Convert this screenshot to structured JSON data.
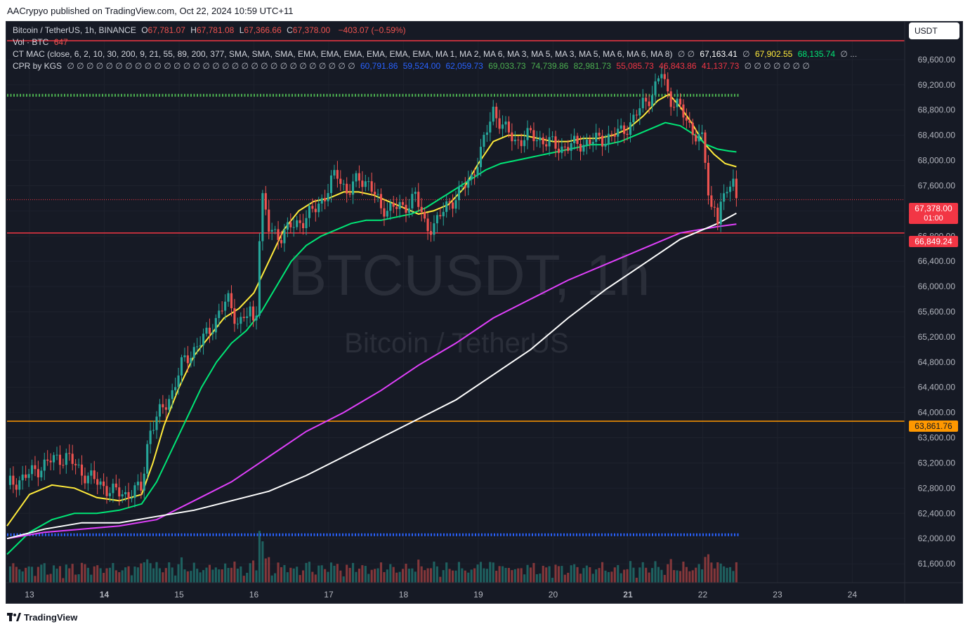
{
  "header": {
    "published": "AACrypyo published on TradingView.com, Oct 22, 2024 10:59 UTC+11"
  },
  "footer": {
    "brand": "TradingView"
  },
  "currency_button": "USDT",
  "legend": {
    "symbol": "Bitcoin / TetherUS, 1h, BINANCE",
    "o_label": "O",
    "o_value": "67,781.07",
    "h_label": "H",
    "h_value": "67,781.08",
    "l_label": "L",
    "l_value": "67,366.66",
    "c_label": "C",
    "c_value": "67,378.00",
    "change": "−403.07 (−0.59%)",
    "vol_label": "Vol · BTC",
    "vol_value": "647",
    "ctmac_label": "CT MAC (close, 6, 2, 10, 30, 200, 9, 21, 55, 89, 200, 377, SMA, SMA, SMA, EMA, EMA, EMA, EMA, EMA, EMA, MA 1, MA 2, MA 6, MA 3, MA 5, MA 3, MA 5, MA 6, MA 6, MA 8)",
    "ctmac_null": "∅ ∅",
    "ctmac_v1": "67,163.41",
    "ctmac_null2": "∅",
    "ctmac_v2": "67,902.55",
    "ctmac_v3": "68,135.74",
    "ctmac_tail": "∅ ...",
    "cpr_label": "CPR by KGS",
    "cpr_nulls": "∅ ∅ ∅ ∅ ∅ ∅ ∅ ∅ ∅ ∅ ∅ ∅ ∅ ∅ ∅ ∅ ∅ ∅ ∅ ∅ ∅ ∅ ∅ ∅ ∅ ∅ ∅ ∅ ∅ ∅",
    "cpr_v1": "60,791.86",
    "cpr_v2": "59,524.00",
    "cpr_v3": "62,059.73",
    "cpr_v4": "69,033.73",
    "cpr_v5": "74,739.86",
    "cpr_v6": "82,981.73",
    "cpr_v7": "55,085.73",
    "cpr_v8": "46,843.86",
    "cpr_v9": "41,137.73",
    "cpr_tail": "∅ ∅ ∅ ∅ ∅ ∅ ∅"
  },
  "watermark": {
    "symbol": "BTCUSDT, 1h",
    "name": "Bitcoin / TetherUS"
  },
  "colors": {
    "background": "#161a25",
    "up": "#26a69a",
    "down": "#ef5350",
    "ema_fast": "#ffeb3b",
    "ema_mid": "#00e676",
    "ma_200": "#ffffff",
    "ma_377": "#e040fb",
    "support_orange": "#ff9800",
    "resistance_red": "#f23645",
    "cpr_green": "#4caf50",
    "cpr_blue": "#2962ff"
  },
  "chart_data": {
    "type": "candlestick",
    "timeframe": "1h",
    "ylim": [
      61300,
      69900
    ],
    "y_ticks": [
      61600,
      62000,
      62400,
      62800,
      63200,
      63600,
      64000,
      64400,
      64800,
      65200,
      65600,
      66000,
      66400,
      66800,
      67200,
      67600,
      68000,
      68400,
      68800,
      69200,
      69600
    ],
    "y_tick_labels": [
      "61,600.00",
      "62,000.00",
      "62,400.00",
      "62,800.00",
      "63,200.00",
      "63,600.00",
      "64,000.00",
      "64,400.00",
      "64,800.00",
      "65,200.00",
      "65,600.00",
      "66,000.00",
      "66,400.00",
      "66,800.00",
      "67,200.00",
      "67,600.00",
      "68,000.00",
      "68,400.00",
      "68,800.00",
      "69,200.00",
      "69,600.00"
    ],
    "x_tick_labels": [
      "13",
      "14",
      "15",
      "16",
      "17",
      "18",
      "19",
      "20",
      "21",
      "22",
      "23",
      "24"
    ],
    "x_tick_bold": [
      "14",
      "21"
    ],
    "xlim_days": [
      12.7,
      24.7
    ],
    "horizontal_lines": [
      {
        "value": 66849.24,
        "label": "66,849.24",
        "color": "#f23645",
        "style": "solid"
      },
      {
        "value": 63861.76,
        "label": "63,861.76",
        "color": "#ff9800",
        "style": "solid"
      },
      {
        "value": 69900,
        "label": "",
        "color": "#f23645",
        "style": "solid"
      },
      {
        "value": 69033.73,
        "label": "",
        "color": "#4caf50",
        "style": "dotted",
        "x_end_day": 22.5
      },
      {
        "value": 62059.73,
        "label": "",
        "color": "#2962ff",
        "style": "dotted",
        "x_end_day": 22.5
      }
    ],
    "last_price": {
      "value": 67378.0,
      "label": "67,378.00",
      "countdown": "01:00",
      "color": "#f23645"
    },
    "closes": {
      "day": [
        12.7,
        12.9,
        13.1,
        13.3,
        13.5,
        13.7,
        13.9,
        14.1,
        14.3,
        14.5,
        14.6,
        14.75,
        14.9,
        15.05,
        15.2,
        15.35,
        15.5,
        15.65,
        15.8,
        15.95,
        16.02,
        16.1,
        16.2,
        16.35,
        16.5,
        16.65,
        16.8,
        16.95,
        17.1,
        17.25,
        17.4,
        17.55,
        17.7,
        17.85,
        18.0,
        18.15,
        18.3,
        18.45,
        18.6,
        18.75,
        18.9,
        19.05,
        19.2,
        19.35,
        19.5,
        19.7,
        19.9,
        20.1,
        20.3,
        20.5,
        20.7,
        20.9,
        21.05,
        21.2,
        21.35,
        21.45,
        21.55,
        21.65,
        21.75,
        21.85,
        22.0,
        22.05,
        22.1,
        22.15,
        22.2,
        22.25,
        22.3,
        22.35,
        22.4,
        22.45
      ],
      "price": [
        62850,
        62950,
        63100,
        63250,
        63300,
        63050,
        62900,
        62750,
        62700,
        62800,
        63700,
        64000,
        64300,
        64800,
        65000,
        65200,
        65500,
        65800,
        65400,
        65600,
        65300,
        67500,
        66900,
        66800,
        66950,
        67050,
        67200,
        67450,
        67800,
        67500,
        67700,
        67650,
        67200,
        67300,
        67200,
        67500,
        66900,
        67050,
        67300,
        67500,
        67700,
        68200,
        68800,
        68500,
        68300,
        68400,
        68300,
        68200,
        68250,
        68300,
        68350,
        68450,
        68600,
        68900,
        69100,
        69400,
        69000,
        68900,
        68700,
        68500,
        68300,
        67800,
        67200,
        67300,
        67100,
        67400,
        67300,
        67600,
        67800,
        67378
      ]
    },
    "series": [
      {
        "name": "",
        "color": "#ffeb3b",
        "day": [
          12.7,
          13.0,
          13.3,
          13.6,
          13.9,
          14.2,
          14.5,
          14.65,
          14.8,
          15.0,
          15.2,
          15.4,
          15.6,
          15.8,
          16.0,
          16.2,
          16.4,
          16.6,
          16.8,
          17.0,
          17.2,
          17.4,
          17.6,
          17.8,
          18.0,
          18.2,
          18.4,
          18.6,
          18.8,
          19.0,
          19.2,
          19.4,
          19.6,
          19.8,
          20.0,
          20.2,
          20.4,
          20.6,
          20.8,
          21.0,
          21.2,
          21.4,
          21.55,
          21.7,
          21.85,
          22.0,
          22.15,
          22.3,
          22.45
        ],
        "values": [
          62200,
          62700,
          62850,
          62800,
          62650,
          62600,
          62700,
          63200,
          63800,
          64400,
          64900,
          65200,
          65500,
          65650,
          65900,
          66400,
          66900,
          67200,
          67350,
          67400,
          67500,
          67500,
          67450,
          67350,
          67250,
          67150,
          67200,
          67300,
          67550,
          67950,
          68300,
          68400,
          68400,
          68350,
          68300,
          68300,
          68350,
          68350,
          68400,
          68500,
          68700,
          68950,
          69050,
          68850,
          68600,
          68300,
          68100,
          67950,
          67900
        ]
      },
      {
        "name": "",
        "color": "#00e676",
        "day": [
          12.7,
          13.0,
          13.3,
          13.6,
          13.9,
          14.2,
          14.5,
          14.7,
          14.9,
          15.1,
          15.3,
          15.5,
          15.7,
          15.9,
          16.1,
          16.3,
          16.5,
          16.7,
          16.9,
          17.1,
          17.3,
          17.5,
          17.7,
          17.9,
          18.1,
          18.3,
          18.5,
          18.7,
          18.9,
          19.1,
          19.3,
          19.5,
          19.7,
          19.9,
          20.1,
          20.3,
          20.5,
          20.7,
          20.9,
          21.1,
          21.3,
          21.5,
          21.7,
          21.9,
          22.05,
          22.2,
          22.35,
          22.45
        ],
        "values": [
          61750,
          62100,
          62300,
          62400,
          62400,
          62450,
          62550,
          62900,
          63400,
          63900,
          64400,
          64800,
          65100,
          65300,
          65600,
          66000,
          66400,
          66650,
          66800,
          66900,
          67000,
          67050,
          67050,
          67100,
          67150,
          67250,
          67400,
          67550,
          67700,
          67850,
          67950,
          68000,
          68050,
          68100,
          68150,
          68200,
          68250,
          68250,
          68300,
          68400,
          68500,
          68600,
          68550,
          68400,
          68250,
          68180,
          68150,
          68135
        ]
      },
      {
        "name": "",
        "color": "#e040fb",
        "day": [
          12.7,
          13.2,
          13.7,
          14.2,
          14.7,
          15.2,
          15.7,
          16.2,
          16.7,
          17.2,
          17.7,
          18.2,
          18.7,
          19.2,
          19.7,
          20.2,
          20.7,
          21.2,
          21.7,
          22.2,
          22.45
        ],
        "values": [
          62000,
          62100,
          62150,
          62200,
          62300,
          62600,
          62900,
          63300,
          63700,
          64000,
          64350,
          64750,
          65100,
          65500,
          65800,
          66100,
          66350,
          66600,
          66850,
          66950,
          66990
        ]
      },
      {
        "name": "",
        "color": "#ffffff",
        "day": [
          12.7,
          13.2,
          13.7,
          14.2,
          14.7,
          15.2,
          15.7,
          16.2,
          16.7,
          17.2,
          17.7,
          18.2,
          18.7,
          19.2,
          19.7,
          20.2,
          20.7,
          21.2,
          21.7,
          22.2,
          22.45
        ],
        "values": [
          62000,
          62150,
          62250,
          62250,
          62350,
          62450,
          62600,
          62750,
          63000,
          63300,
          63600,
          63900,
          64200,
          64600,
          65000,
          65500,
          65950,
          66350,
          66750,
          67000,
          67163
        ]
      }
    ]
  }
}
